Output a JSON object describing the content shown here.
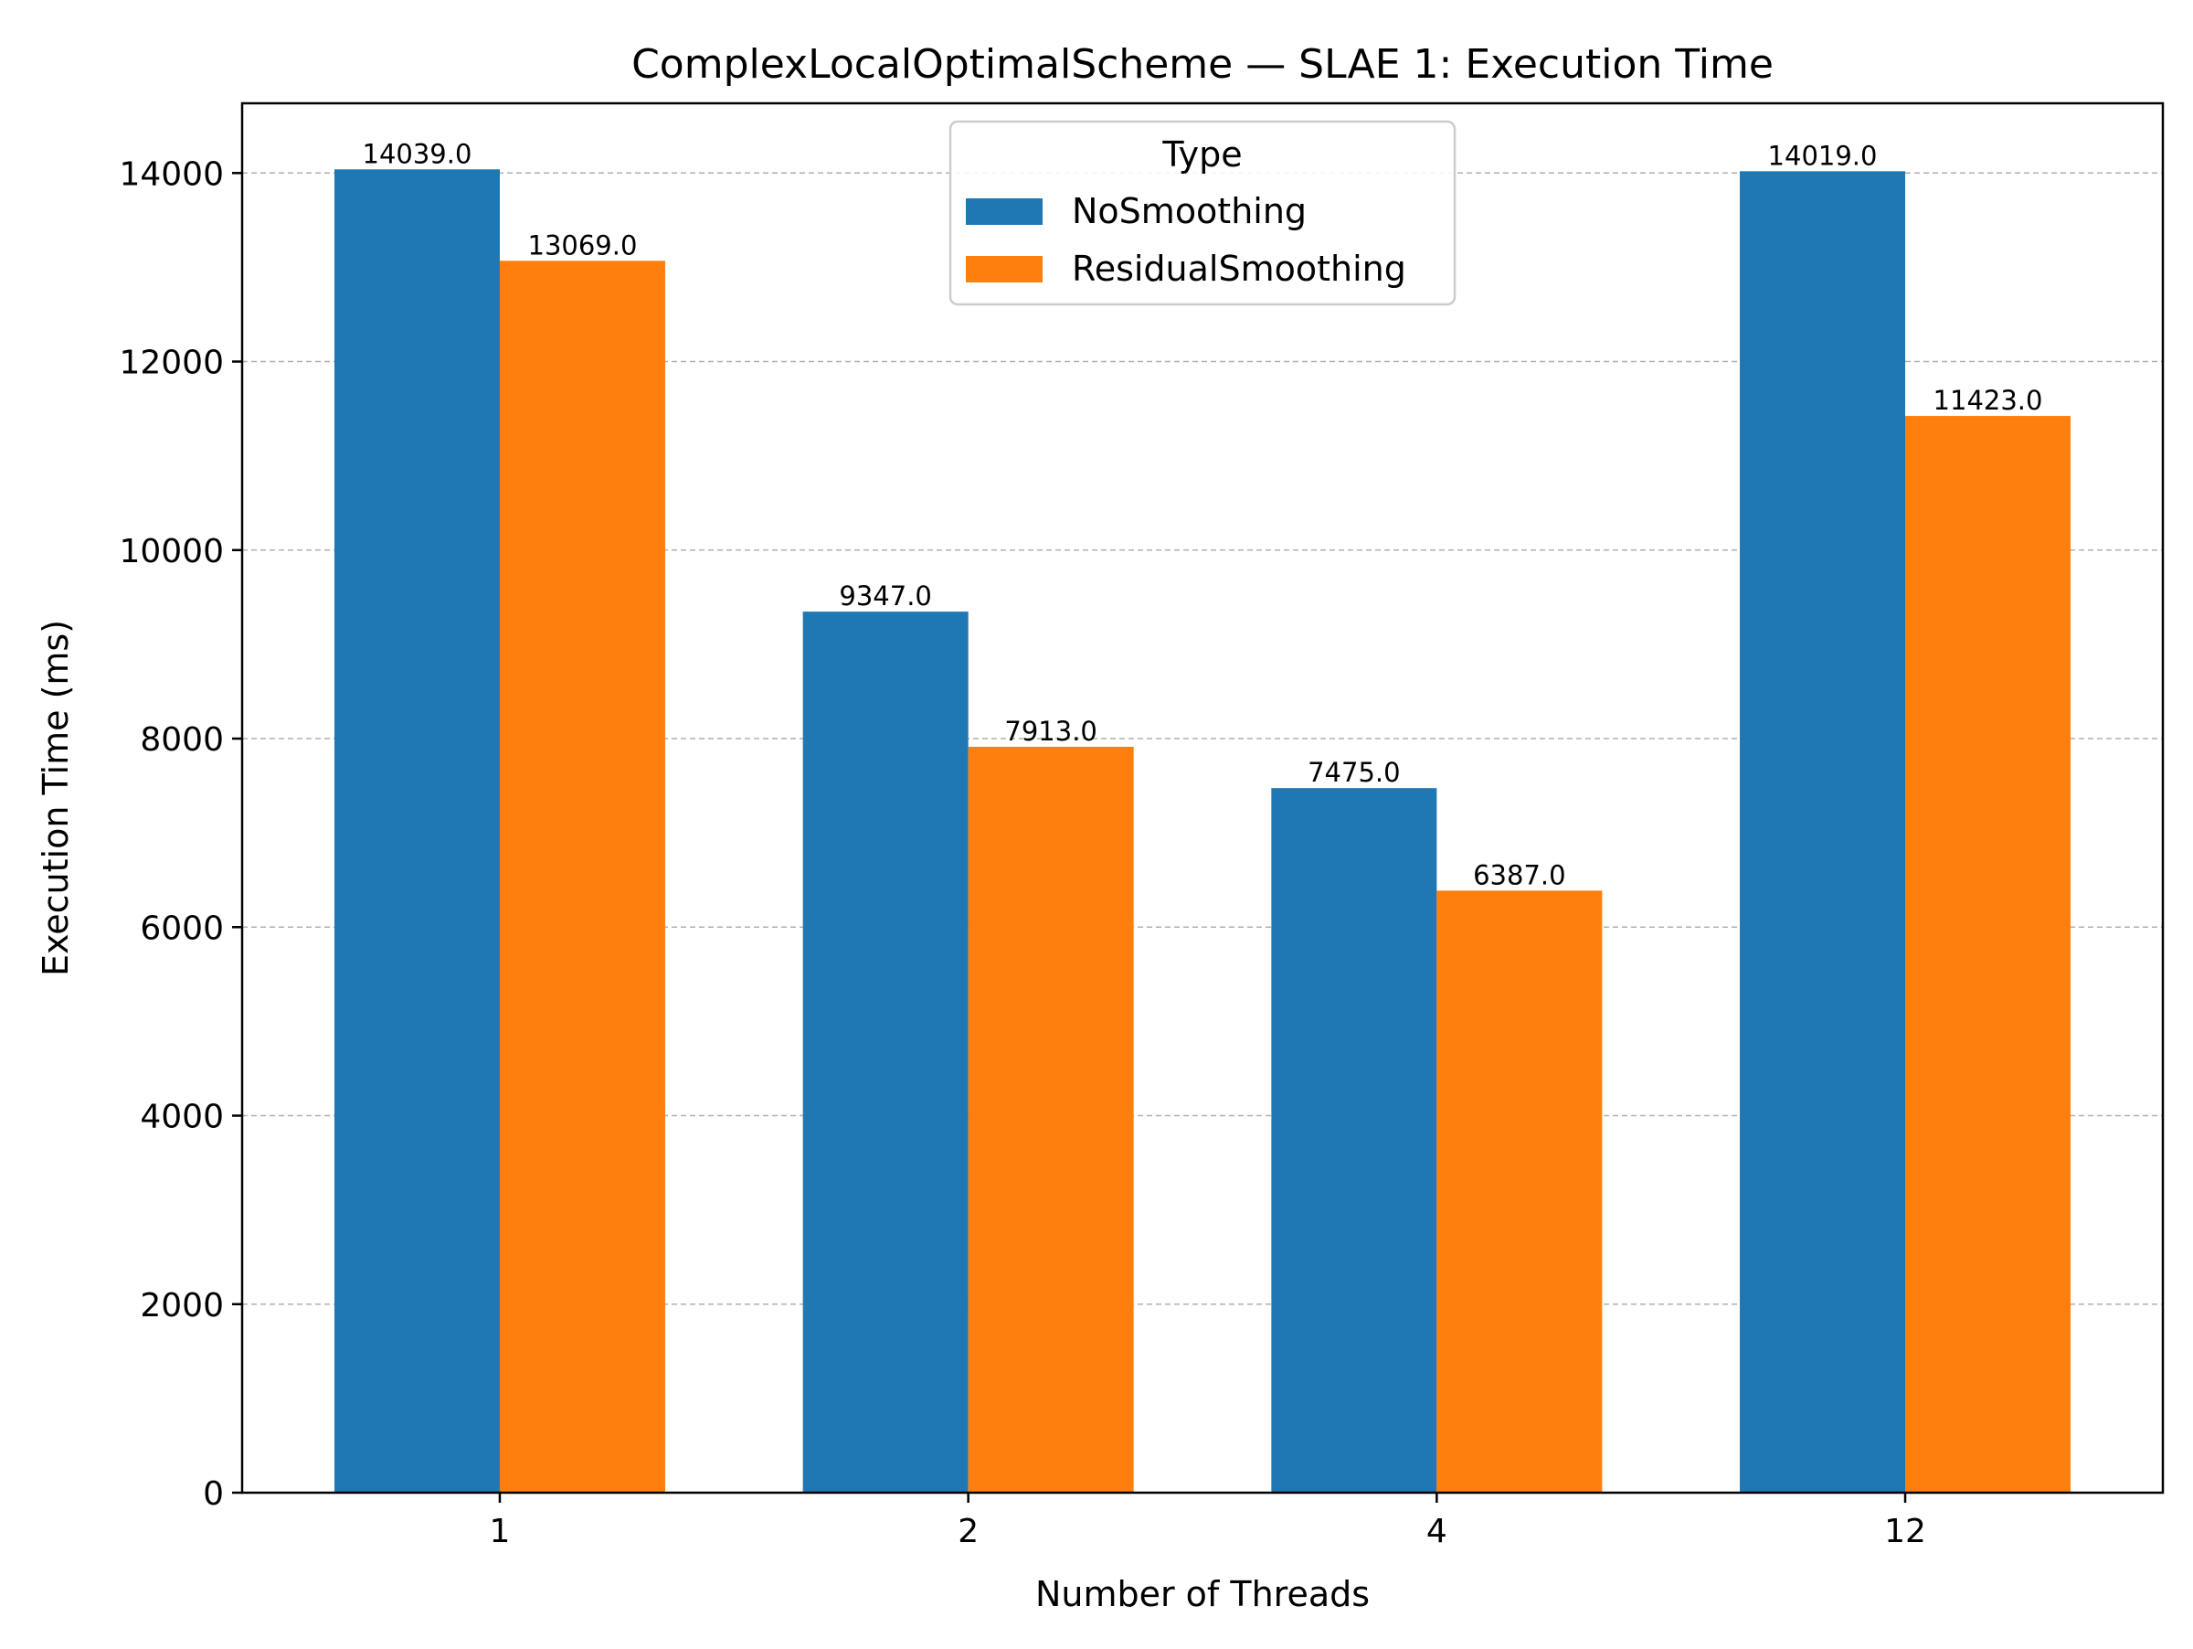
{
  "chart_data": {
    "type": "bar",
    "title": "ComplexLocalOptimalScheme — SLAE 1: Execution Time",
    "xlabel": "Number of Threads",
    "ylabel": "Execution Time (ms)",
    "categories": [
      "1",
      "2",
      "4",
      "12"
    ],
    "ylim": [
      0,
      14740
    ],
    "yticks": [
      0,
      2000,
      4000,
      6000,
      8000,
      10000,
      12000,
      14000
    ],
    "grid": "horizontal dashed",
    "legend": {
      "title": "Type",
      "position": "top-center"
    },
    "series": [
      {
        "name": "NoSmoothing",
        "color": "#1f77b4",
        "values": [
          14039.0,
          9347.0,
          7475.0,
          14019.0
        ],
        "labels": [
          "14039.0",
          "9347.0",
          "7475.0",
          "14019.0"
        ]
      },
      {
        "name": "ResidualSmoothing",
        "color": "#ff7f0e",
        "values": [
          13069.0,
          7913.0,
          6387.0,
          11423.0
        ],
        "labels": [
          "13069.0",
          "7913.0",
          "6387.0",
          "11423.0"
        ]
      }
    ]
  }
}
